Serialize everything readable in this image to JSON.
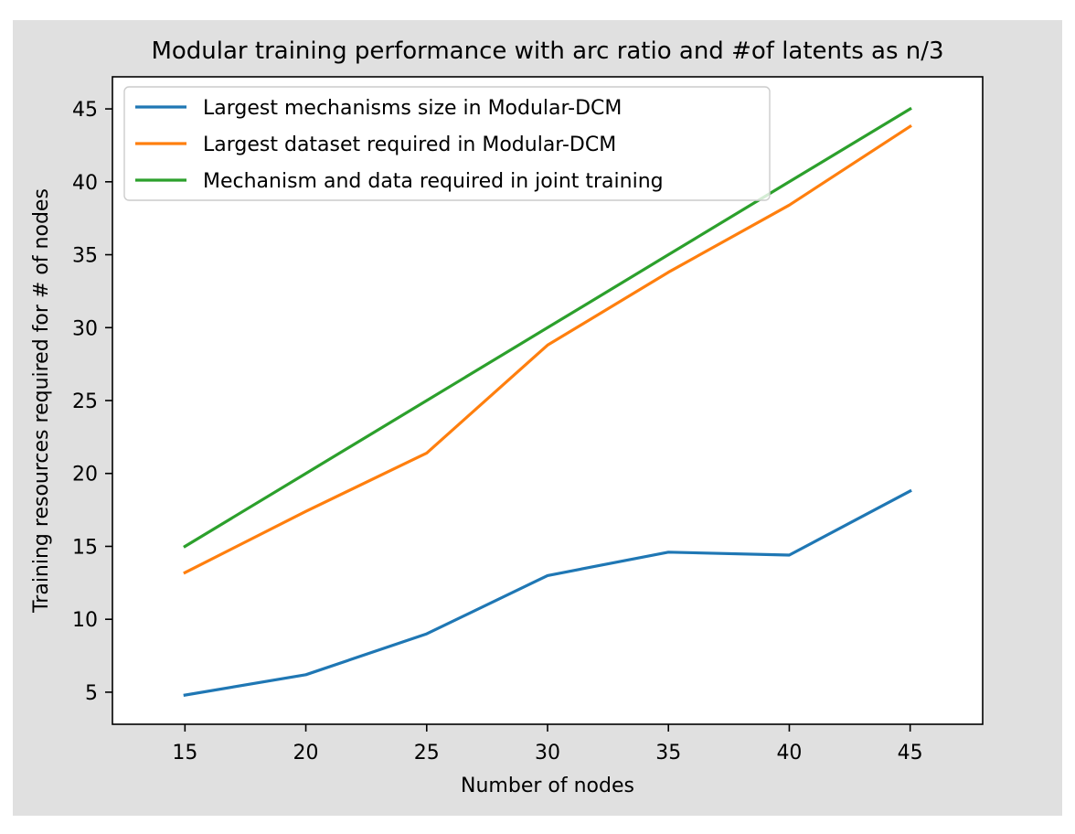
{
  "figure": {
    "background": "#e0e0e0",
    "axes_background": "#ffffff"
  },
  "chart_data": {
    "type": "line",
    "title": "Modular training performance with arc ratio and #of latents as n/3",
    "xlabel": "Number of nodes",
    "ylabel": "Training resources required for # of nodes",
    "xlim": [
      12,
      48
    ],
    "ylim": [
      2.8,
      47.2
    ],
    "xticks": [
      15,
      20,
      25,
      30,
      35,
      40,
      45
    ],
    "yticks": [
      5,
      10,
      15,
      20,
      25,
      30,
      35,
      40,
      45
    ],
    "grid": false,
    "legend_position": "top-left",
    "x": [
      15,
      20,
      25,
      30,
      35,
      40,
      45
    ],
    "series": [
      {
        "name": "Largest mechanisms size in Modular-DCM",
        "color": "#1f77b4",
        "values": [
          4.8,
          6.2,
          9.0,
          13.0,
          14.6,
          14.4,
          18.8
        ]
      },
      {
        "name": "Largest dataset required in Modular-DCM",
        "color": "#ff7f0e",
        "values": [
          13.2,
          17.4,
          21.4,
          28.8,
          33.8,
          38.4,
          43.8
        ]
      },
      {
        "name": "Mechanism and data required in joint training",
        "color": "#2ca02c",
        "values": [
          15.0,
          20.0,
          25.0,
          30.0,
          35.0,
          40.0,
          45.0
        ]
      }
    ]
  }
}
